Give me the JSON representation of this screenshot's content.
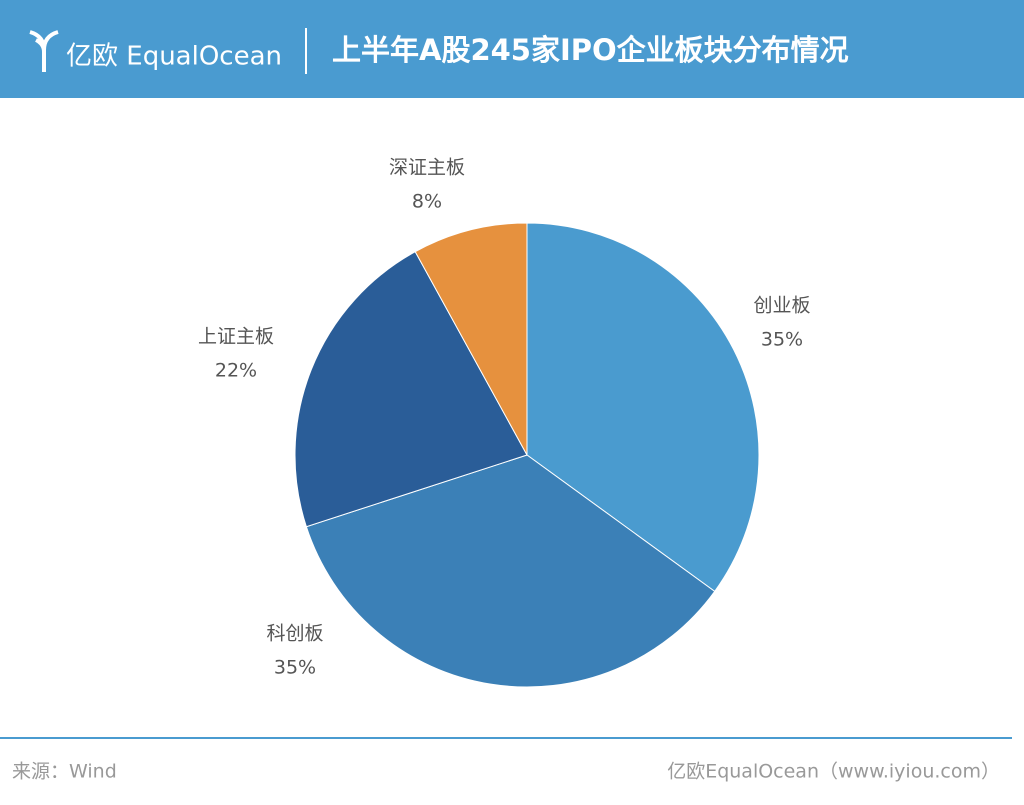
{
  "header": {
    "logo": "亿欧 EqualOcean"
  },
  "chart_data": {
    "type": "pie",
    "title": "上半年A股245家IPO企业板块分布情况",
    "categories": [
      "创业板",
      "科创板",
      "上证主板",
      "深证主板"
    ],
    "values": [
      35,
      35,
      22,
      8
    ],
    "value_labels": [
      "35%",
      "35%",
      "22%",
      "8%"
    ],
    "colors": [
      "#4a9bcf",
      "#3b80b7",
      "#2a5d98",
      "#e6913e"
    ]
  },
  "footer": {
    "source": "来源：Wind",
    "credit": "亿欧EqualOcean（www.iyiou.com）"
  }
}
